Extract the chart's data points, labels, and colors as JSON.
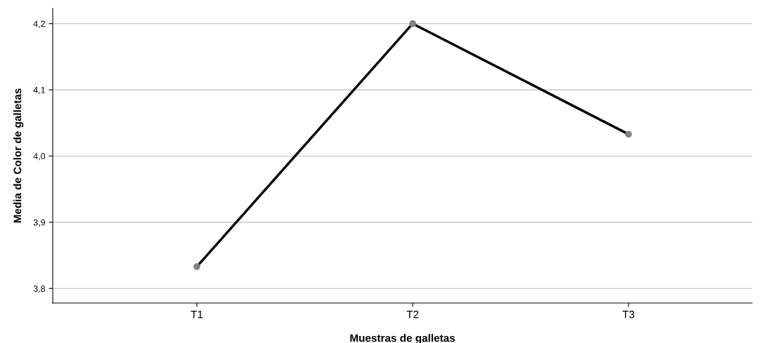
{
  "chart_data": {
    "type": "line",
    "xlabel": "Muestras de galletas",
    "ylabel": "Media de Color de galletas",
    "categories": [
      "T1",
      "T2",
      "T3"
    ],
    "series": [
      {
        "color": "#000000",
        "values": [
          3.833,
          4.2,
          4.033
        ]
      }
    ],
    "ylim": [
      3.778,
      4.223
    ],
    "yticks": [
      {
        "value": 3.8,
        "label": "3,8"
      },
      {
        "value": 3.9,
        "label": "3,9"
      },
      {
        "value": 4.0,
        "label": "4,0"
      },
      {
        "value": 4.1,
        "label": "4,1"
      },
      {
        "value": 4.2,
        "label": "4,2"
      }
    ],
    "grid": "y",
    "marker": "circle",
    "line_style": "solid"
  }
}
